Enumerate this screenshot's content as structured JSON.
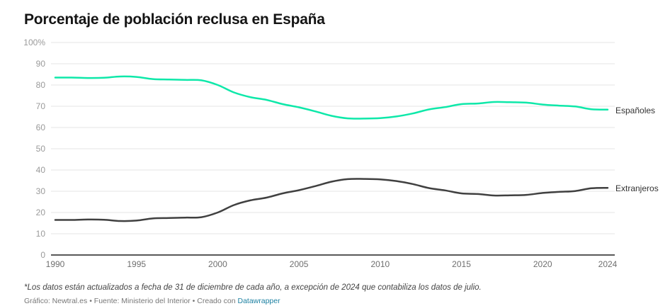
{
  "header": {
    "title": "Porcentaje de población reclusa en España"
  },
  "footer": {
    "notes": "*Los datos están actualizados a fecha de 31 de diciembre de cada año, a excepción de 2024 que contabiliza los datos de julio.",
    "byline_prefix": "Gráfico: Newtral.es • Fuente: Ministerio del Interior • Creado con ",
    "byline_link": "Datawrapper"
  },
  "colors": {
    "espanoles": "#0ee8a9",
    "extranjeros": "#404040"
  },
  "chart_data": {
    "type": "line",
    "title": "Porcentaje de población reclusa en España",
    "xlabel": "",
    "ylabel": "",
    "x": [
      1990,
      1991,
      1992,
      1993,
      1994,
      1995,
      1996,
      1997,
      1998,
      1999,
      2000,
      2001,
      2002,
      2003,
      2004,
      2005,
      2006,
      2007,
      2008,
      2009,
      2010,
      2011,
      2012,
      2013,
      2014,
      2015,
      2016,
      2017,
      2018,
      2019,
      2020,
      2021,
      2022,
      2023,
      2024
    ],
    "series": [
      {
        "name": "Españoles",
        "color": "#0ee8a9",
        "values": [
          83.5,
          83.5,
          83.3,
          83.4,
          84.0,
          83.8,
          82.8,
          82.6,
          82.4,
          82.2,
          80.0,
          76.5,
          74.3,
          73.0,
          71.0,
          69.5,
          67.6,
          65.5,
          64.3,
          64.2,
          64.4,
          65.2,
          66.6,
          68.5,
          69.6,
          71.0,
          71.3,
          72.0,
          71.9,
          71.7,
          70.8,
          70.3,
          69.9,
          68.6,
          68.4
        ]
      },
      {
        "name": "Extranjeros",
        "color": "#404040",
        "values": [
          16.5,
          16.5,
          16.7,
          16.6,
          16.0,
          16.2,
          17.2,
          17.4,
          17.6,
          17.8,
          20.0,
          23.5,
          25.7,
          27.0,
          29.0,
          30.5,
          32.4,
          34.5,
          35.7,
          35.8,
          35.6,
          34.8,
          33.4,
          31.5,
          30.4,
          29.0,
          28.7,
          28.0,
          28.1,
          28.3,
          29.2,
          29.7,
          30.1,
          31.4,
          31.6
        ]
      }
    ],
    "x_ticks": [
      "1990",
      "1995",
      "2000",
      "2005",
      "2010",
      "2015",
      "2020",
      "2024"
    ],
    "y_ticks": [
      "0",
      "10",
      "20",
      "30",
      "40",
      "50",
      "60",
      "70",
      "80",
      "90",
      "100%"
    ],
    "ylim": [
      0,
      100
    ],
    "xlim": [
      1990,
      2024
    ],
    "grid": true,
    "legend": "direct labels at line ends (right)"
  }
}
